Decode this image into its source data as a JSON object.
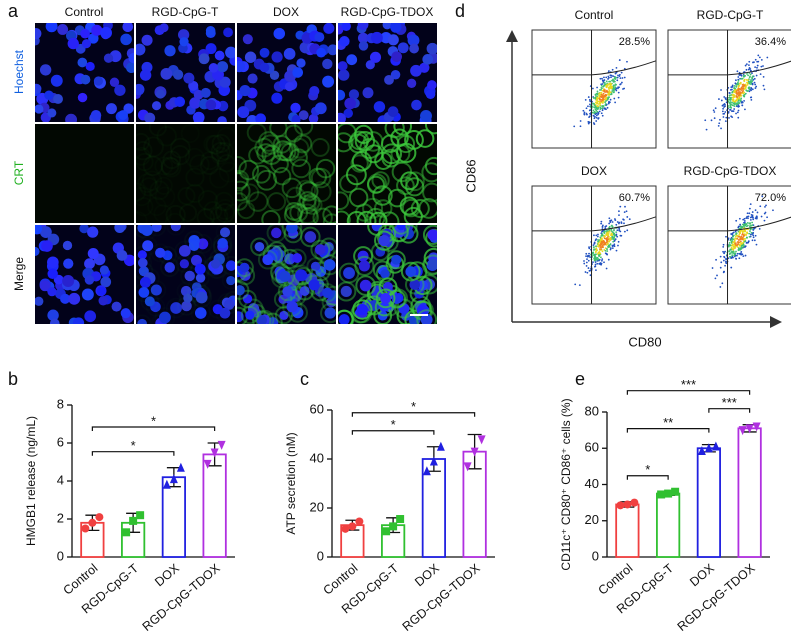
{
  "panel_labels": [
    "a",
    "b",
    "c",
    "d",
    "e"
  ],
  "microscopy": {
    "columns": [
      "Control",
      "RGD-CpG-T",
      "DOX",
      "RGD-CpG-TDOX"
    ],
    "rows": [
      "Hoechst",
      "CRT",
      "Merge"
    ]
  },
  "flow": {
    "x_label": "CD80",
    "y_label": "CD86",
    "plots": [
      {
        "title": "Control",
        "percent": "28.5%"
      },
      {
        "title": "RGD-CpG-T",
        "percent": "36.4%"
      },
      {
        "title": "DOX",
        "percent": "60.7%"
      },
      {
        "title": "RGD-CpG-TDOX",
        "percent": "72.0%"
      }
    ]
  },
  "chart_data": [
    {
      "type": "bar",
      "ylabel": "HMGB1 release (ng/mL)",
      "categories": [
        "Control",
        "RGD-CpG-T",
        "DOX",
        "RGD-CpG-TDOX"
      ],
      "colors": [
        "#f04040",
        "#30c030",
        "#2020e0",
        "#b030e0"
      ],
      "values": [
        1.8,
        1.8,
        4.2,
        5.4
      ],
      "errors": [
        0.4,
        0.5,
        0.5,
        0.6
      ],
      "points": [
        [
          1.5,
          1.8,
          2.1
        ],
        [
          1.3,
          1.9,
          2.2
        ],
        [
          3.8,
          4.1,
          4.7
        ],
        [
          4.9,
          5.5,
          5.9
        ]
      ],
      "ylim": [
        0,
        8
      ],
      "yticks": [
        0,
        2,
        4,
        6,
        8
      ],
      "brackets": [
        {
          "from": "Control",
          "to": "DOX",
          "label": "*"
        },
        {
          "from": "Control",
          "to": "RGD-CpG-TDOX",
          "label": "*"
        }
      ]
    },
    {
      "type": "bar",
      "ylabel": "ATP secretion (nM)",
      "categories": [
        "Control",
        "RGD-CpG-T",
        "DOX",
        "RGD-CpG-TDOX"
      ],
      "colors": [
        "#f04040",
        "#30c030",
        "#2020e0",
        "#b030e0"
      ],
      "values": [
        13,
        13,
        40,
        43
      ],
      "errors": [
        2,
        3,
        5,
        7
      ],
      "points": [
        [
          11.5,
          12.5,
          14.5
        ],
        [
          10.5,
          12.5,
          15.5
        ],
        [
          35,
          39,
          45
        ],
        [
          37,
          43,
          48
        ]
      ],
      "ylim": [
        0,
        60
      ],
      "yticks": [
        0,
        20,
        40,
        60
      ],
      "brackets": [
        {
          "from": "Control",
          "to": "DOX",
          "label": "*"
        },
        {
          "from": "Control",
          "to": "RGD-CpG-TDOX",
          "label": "*"
        }
      ]
    },
    {
      "type": "bar",
      "ylabel": "CD11c⁺ CD80⁺ CD86⁺ cells (%)",
      "categories": [
        "Control",
        "RGD-CpG-T",
        "DOX",
        "RGD-CpG-TDOX"
      ],
      "colors": [
        "#f04040",
        "#30c030",
        "#2020e0",
        "#b030e0"
      ],
      "values": [
        29,
        35,
        60,
        71
      ],
      "errors": [
        1.5,
        1,
        2,
        2
      ],
      "points": [
        [
          28.5,
          29,
          30
        ],
        [
          34.5,
          35,
          36
        ],
        [
          58.5,
          60,
          61
        ],
        [
          70,
          71,
          72
        ]
      ],
      "ylim": [
        0,
        80
      ],
      "yticks": [
        0,
        20,
        40,
        60,
        80
      ],
      "brackets": [
        {
          "from": "Control",
          "to": "RGD-CpG-T",
          "label": "*"
        },
        {
          "from": "Control",
          "to": "DOX",
          "label": "**"
        },
        {
          "from": "DOX",
          "to": "RGD-CpG-TDOX",
          "label": "***"
        },
        {
          "from": "Control",
          "to": "RGD-CpG-TDOX",
          "label": "***"
        }
      ]
    }
  ]
}
